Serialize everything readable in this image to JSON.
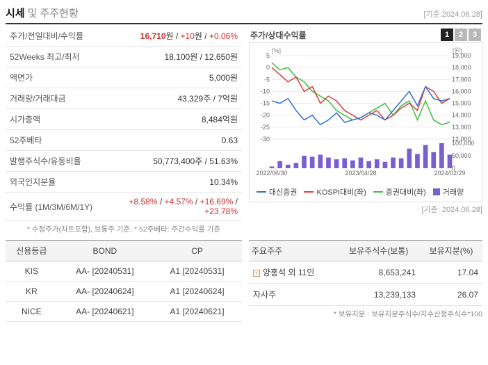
{
  "header": {
    "title_a": "시세",
    "title_b": "및 주주현황",
    "date_ref": "[기준:2024.06.28]"
  },
  "priceTable": {
    "rows": [
      {
        "label": "주가/전일대비/수익률",
        "value_html": "price_row"
      },
      {
        "label": "52Weeks 최고/최저",
        "value": "18,100원 / 12,650원"
      },
      {
        "label": "액면가",
        "value": "5,000원"
      },
      {
        "label": "거래량/거래대금",
        "value": "43,329주 / 7억원"
      },
      {
        "label": "시가총액",
        "value": "8,484억원"
      },
      {
        "label": "52주베타",
        "value": "0.63"
      },
      {
        "label": "발행주식수/유동비율",
        "value": "50,773,400주 / 51.63%"
      },
      {
        "label": "외국인지분율",
        "value": "10.34%"
      },
      {
        "label": "수익률 (1M/3M/6M/1Y)",
        "value_html": "return_row"
      }
    ],
    "price_row": {
      "price": "16,710",
      "unit": "원 / ",
      "diff": "+10",
      "diff_unit": "원 / ",
      "rate": "+0.06%"
    },
    "return_row": {
      "m1": "+8.58%",
      "m3": "+4.57%",
      "m6": "+16.69%",
      "y1": "+23.78%",
      "sep": " / "
    },
    "footnote": "* 수정주가(차트포함), 보통주 기준, * 52주베타: 주간수익률 기준"
  },
  "chart": {
    "title": "주가/상대수익률",
    "tabs": [
      "1",
      "2",
      "3"
    ],
    "active_tab": 0,
    "left_axis_label": "[%]",
    "right_axis_label": "[원]",
    "left_ticks": [
      5,
      0,
      -5,
      -10,
      -15,
      -20,
      -25,
      -30
    ],
    "right_ticks": [
      19000,
      18000,
      17000,
      16000,
      15000,
      14000,
      13000,
      12000
    ],
    "vol_ticks": [
      100000,
      50000,
      0
    ],
    "x_labels": [
      "2022/06/30",
      "2023/04/28",
      "2024/02/29"
    ],
    "colors": {
      "blue": "#2f6fd1",
      "red": "#e13a3a",
      "green": "#3fbf3f",
      "purple": "#7a5fd1",
      "grid": "#d6d6d6",
      "bg": "#ffffff"
    },
    "series": {
      "blue_y": [
        -14,
        -15,
        -13,
        -18,
        -22,
        -20,
        -24,
        -22,
        -19,
        -23,
        -22,
        -21,
        -19,
        -20,
        -22,
        -18,
        -14,
        -10,
        -16,
        -8,
        -13,
        -14,
        -13
      ],
      "red_y": [
        0,
        -3,
        -6,
        -4,
        -10,
        -8,
        -15,
        -12,
        -14,
        -18,
        -20,
        -22,
        -20,
        -18,
        -22,
        -20,
        -17,
        -15,
        -18,
        -8,
        -10,
        -15,
        -13
      ],
      "green_y": [
        2,
        -1,
        0,
        -4,
        -6,
        -10,
        -12,
        -14,
        -18,
        -20,
        -22,
        -21,
        -19,
        -17,
        -15,
        -20,
        -16,
        -14,
        -22,
        -14,
        -22,
        -24,
        -23
      ],
      "vol": [
        5,
        20,
        10,
        15,
        35,
        32,
        38,
        30,
        25,
        28,
        22,
        30,
        20,
        25,
        18,
        30,
        28,
        55,
        40,
        65,
        45,
        70,
        38
      ]
    },
    "legend": [
      {
        "label": "대신증권",
        "color": "blue",
        "kind": "line"
      },
      {
        "label": "KOSPI대비(좌)",
        "color": "red",
        "kind": "line"
      },
      {
        "label": "증권대비(좌)",
        "color": "green",
        "kind": "line"
      },
      {
        "label": "거래량",
        "color": "purple",
        "kind": "box"
      }
    ],
    "date_ref": "[기준: 2024.06.28]"
  },
  "ratingTable": {
    "headers": [
      "신용등급",
      "BOND",
      "CP"
    ],
    "rows": [
      {
        "name": "KIS",
        "bond": "AA-  [20240531]",
        "cp": "A1  [20240531]"
      },
      {
        "name": "KR",
        "bond": "AA-  [20240624]",
        "cp": "A1  [20240624]"
      },
      {
        "name": "NICE",
        "bond": "AA-  [20240621]",
        "cp": "A1  [20240621]"
      }
    ]
  },
  "holderTable": {
    "headers": [
      "주요주주",
      "보유주식수(보통)",
      "보유지분(%)"
    ],
    "rows": [
      {
        "name": "양홍석 외 11인",
        "expandable": true,
        "shares": "8,653,241",
        "pct": "17.04"
      },
      {
        "name": "자사주",
        "expandable": false,
        "shares": "13,239,133",
        "pct": "26.07"
      }
    ],
    "footnote": "* 보유지분 : 보유지분주식수/지수산정주식수*100"
  }
}
